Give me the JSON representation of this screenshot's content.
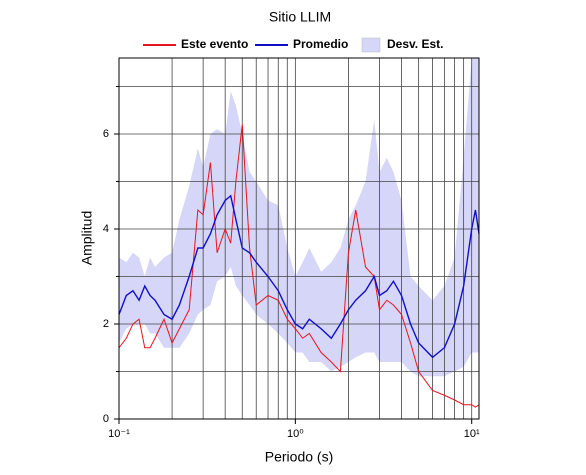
{
  "chart_data": {
    "type": "line",
    "title": "Sitio LLIM",
    "x_label": "Periodo (s)",
    "y_label": "Amplitud",
    "xscale": "log",
    "xlim": [
      0.1,
      11
    ],
    "ylim": [
      0,
      7.6
    ],
    "xticks": [
      {
        "value": 0.1,
        "label": "10⁻¹"
      },
      {
        "value": 1,
        "label": "10⁰"
      },
      {
        "value": 10,
        "label": "10¹"
      }
    ],
    "xminor": [
      0.2,
      0.3,
      0.4,
      0.5,
      0.6,
      0.7,
      0.8,
      0.9,
      2,
      3,
      4,
      5,
      6,
      7,
      8,
      9
    ],
    "yticks": [
      0,
      2,
      4,
      6
    ],
    "yminor": [
      1,
      3,
      5,
      7
    ],
    "grid": true,
    "legend": "top",
    "x": [
      0.1,
      0.11,
      0.12,
      0.13,
      0.14,
      0.15,
      0.16,
      0.18,
      0.2,
      0.22,
      0.25,
      0.28,
      0.3,
      0.33,
      0.36,
      0.4,
      0.43,
      0.46,
      0.5,
      0.55,
      0.6,
      0.7,
      0.8,
      0.9,
      1.0,
      1.1,
      1.2,
      1.4,
      1.6,
      1.8,
      2.0,
      2.2,
      2.5,
      2.8,
      3.0,
      3.3,
      3.6,
      4.0,
      4.5,
      5.0,
      6.0,
      7.0,
      8.0,
      9.0,
      10,
      10.5,
      11
    ],
    "series": [
      {
        "name": "Desv. Est.",
        "color": "#d6d6f8",
        "low": [
          1.6,
          1.9,
          2.0,
          2.0,
          2.0,
          1.8,
          1.8,
          1.5,
          1.5,
          1.5,
          1.8,
          2.2,
          2.3,
          2.4,
          2.9,
          3.0,
          3.2,
          2.8,
          2.6,
          2.4,
          2.2,
          2.0,
          1.8,
          1.6,
          1.4,
          1.4,
          1.2,
          1.2,
          1.0,
          1.1,
          1.2,
          1.3,
          1.4,
          1.4,
          1.2,
          1.2,
          1.2,
          1.2,
          1.0,
          0.9,
          0.9,
          0.9,
          1.0,
          1.1,
          1.4,
          1.4,
          1.4
        ],
        "high": [
          3.4,
          3.3,
          3.5,
          3.4,
          3.0,
          3.4,
          3.2,
          3.4,
          3.5,
          4.2,
          4.9,
          5.7,
          5.3,
          6.0,
          6.1,
          6.0,
          6.9,
          6.6,
          6.0,
          5.2,
          5.0,
          4.6,
          4.5,
          3.6,
          3.0,
          3.3,
          3.6,
          3.1,
          3.3,
          3.6,
          4.2,
          4.5,
          5.0,
          6.3,
          5.2,
          5.5,
          5.2,
          4.6,
          3.0,
          2.8,
          2.5,
          2.8,
          3.4,
          5.5,
          7.6,
          7.6,
          7.6
        ]
      },
      {
        "name": "Este evento",
        "color": "#e8141e",
        "values": [
          1.5,
          1.7,
          2.0,
          2.1,
          1.5,
          1.5,
          1.7,
          2.1,
          1.6,
          1.9,
          2.3,
          4.4,
          4.3,
          5.4,
          3.5,
          4.0,
          3.7,
          5.0,
          6.2,
          3.6,
          2.4,
          2.6,
          2.5,
          2.1,
          1.9,
          1.7,
          1.8,
          1.4,
          1.2,
          1.0,
          3.5,
          4.4,
          3.2,
          3.0,
          2.3,
          2.5,
          2.4,
          2.2,
          1.6,
          1.0,
          0.6,
          0.5,
          0.4,
          0.3,
          0.3,
          0.25,
          0.3
        ]
      },
      {
        "name": "Promedio",
        "color": "#1010c8",
        "values": [
          2.2,
          2.6,
          2.7,
          2.5,
          2.8,
          2.6,
          2.5,
          2.2,
          2.1,
          2.4,
          3.0,
          3.6,
          3.6,
          3.9,
          4.3,
          4.6,
          4.7,
          4.2,
          3.6,
          3.5,
          3.3,
          3.0,
          2.7,
          2.3,
          2.0,
          1.9,
          2.1,
          1.9,
          1.7,
          2.0,
          2.3,
          2.5,
          2.7,
          3.0,
          2.6,
          2.7,
          2.9,
          2.6,
          2.0,
          1.6,
          1.3,
          1.5,
          2.0,
          2.8,
          4.0,
          4.4,
          3.9
        ]
      }
    ]
  }
}
